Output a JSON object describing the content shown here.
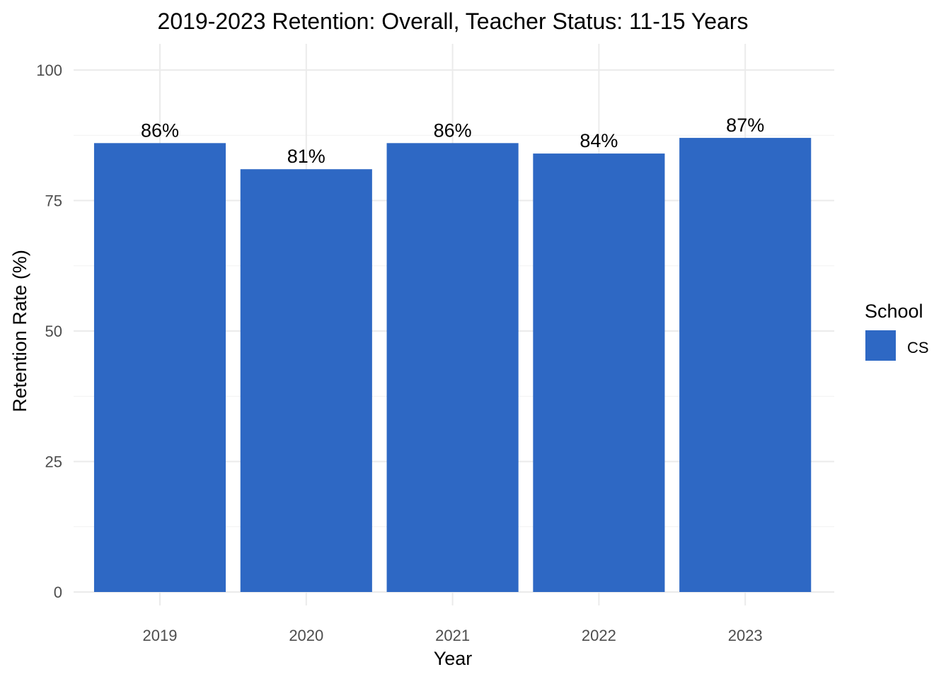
{
  "chart_data": {
    "type": "bar",
    "title": "2019-2023 Retention: Overall, Teacher Status: 11-15 Years",
    "xlabel": "Year",
    "ylabel": "Retention Rate (%)",
    "categories": [
      "2019",
      "2020",
      "2021",
      "2022",
      "2023"
    ],
    "series": [
      {
        "name": "CS",
        "values": [
          86,
          81,
          86,
          84,
          87
        ],
        "labels": [
          "86%",
          "81%",
          "86%",
          "84%",
          "87%"
        ],
        "color": "#2E68C4"
      }
    ],
    "ylim": [
      0,
      100
    ],
    "yticks": [
      0,
      25,
      50,
      75,
      100
    ],
    "grid": true,
    "legend": {
      "title": "School",
      "placement": "right"
    }
  }
}
